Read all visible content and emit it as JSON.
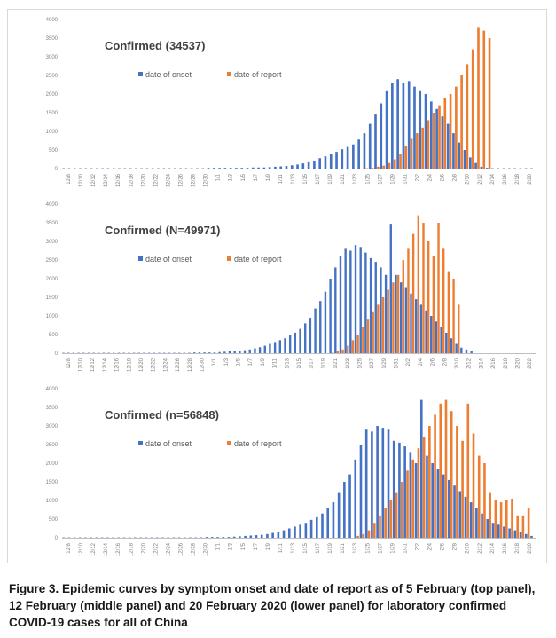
{
  "colors": {
    "onset": "#4472C4",
    "report": "#ED7D31",
    "axis": "#bfbfbf",
    "tick_text": "#7f7f7f"
  },
  "legend": {
    "onset_label": "date of onset",
    "report_label": "date of report"
  },
  "caption": {
    "label": "Figure 3.",
    "text": "Epidemic curves by symptom onset and date of report as of 5 February (top panel), 12 February (middle panel) and 20 February 2020 (lower panel) for laboratory confirmed COVID-19 cases for all of China"
  },
  "chart_data": [
    {
      "type": "bar",
      "title": "Confirmed (34537)",
      "ylim": [
        0,
        4000
      ],
      "yticks": [
        "0",
        "500",
        "1000",
        "1500",
        "2000",
        "2500",
        "3000",
        "3500",
        "4000"
      ],
      "x_tick_labels": [
        "12/8",
        "12/10",
        "12/12",
        "12/14",
        "12/16",
        "12/18",
        "12/20",
        "12/22",
        "12/24",
        "12/26",
        "12/28",
        "12/30",
        "1/1",
        "1/3",
        "1/5",
        "1/7",
        "1/9",
        "1/11",
        "1/13",
        "1/15",
        "1/17",
        "1/19",
        "1/21",
        "1/23",
        "1/25",
        "1/27",
        "1/29",
        "1/31",
        "2/2",
        "2/4",
        "2/6",
        "2/8",
        "2/10",
        "2/12",
        "2/14",
        "2/16",
        "2/18",
        "2/20"
      ],
      "series": [
        {
          "name": "date of onset",
          "values": [
            10,
            10,
            10,
            10,
            10,
            10,
            10,
            10,
            10,
            10,
            10,
            10,
            10,
            10,
            10,
            10,
            10,
            10,
            10,
            10,
            10,
            10,
            10,
            10,
            10,
            10,
            20,
            20,
            20,
            20,
            20,
            20,
            20,
            20,
            30,
            30,
            30,
            40,
            50,
            60,
            70,
            90,
            110,
            140,
            170,
            210,
            280,
            330,
            400,
            450,
            520,
            580,
            650,
            780,
            950,
            1200,
            1450,
            1750,
            2100,
            2300,
            2400,
            2300,
            2350,
            2200,
            2100,
            2000,
            1800,
            1600,
            1400,
            1200,
            950,
            700,
            500,
            300,
            150,
            50,
            20,
            10,
            10,
            10,
            10,
            10,
            10,
            10,
            10
          ]
        },
        {
          "name": "date of report",
          "values": [
            0,
            0,
            0,
            0,
            0,
            0,
            0,
            0,
            0,
            0,
            0,
            0,
            0,
            0,
            0,
            0,
            0,
            0,
            0,
            0,
            0,
            0,
            0,
            0,
            0,
            0,
            0,
            0,
            0,
            0,
            0,
            0,
            0,
            0,
            0,
            0,
            0,
            0,
            0,
            0,
            0,
            0,
            0,
            0,
            0,
            0,
            0,
            0,
            0,
            0,
            0,
            0,
            0,
            0,
            10,
            20,
            50,
            80,
            150,
            250,
            400,
            600,
            800,
            950,
            1100,
            1300,
            1500,
            1700,
            1900,
            2000,
            2200,
            2500,
            2800,
            3200,
            3800,
            3700,
            3500,
            0,
            0,
            0,
            0,
            0,
            0,
            0,
            0
          ]
        }
      ]
    },
    {
      "type": "bar",
      "title": "Confirmed (N=49971)",
      "ylim": [
        0,
        4000
      ],
      "yticks": [
        "0",
        "500",
        "1000",
        "1500",
        "2000",
        "2500",
        "3000",
        "3500",
        "4000"
      ],
      "x_tick_labels": [
        "12/8",
        "12/10",
        "12/12",
        "12/14",
        "12/16",
        "12/18",
        "12/20",
        "12/22",
        "12/24",
        "12/26",
        "12/28",
        "12/30",
        "1/1",
        "1/3",
        "1/5",
        "1/7",
        "1/9",
        "1/11",
        "1/13",
        "1/15",
        "1/17",
        "1/19",
        "1/21",
        "1/23",
        "1/25",
        "1/27",
        "1/29",
        "1/31",
        "2/2",
        "2/4",
        "2/6",
        "2/8",
        "2/10",
        "2/12",
        "2/14",
        "2/16",
        "2/18",
        "2/20",
        "2/22"
      ],
      "series": [
        {
          "name": "date of onset",
          "values": [
            10,
            10,
            10,
            10,
            10,
            10,
            10,
            10,
            10,
            10,
            10,
            10,
            10,
            10,
            10,
            10,
            10,
            10,
            10,
            10,
            10,
            10,
            10,
            10,
            10,
            10,
            20,
            20,
            20,
            20,
            20,
            30,
            40,
            50,
            60,
            70,
            80,
            100,
            130,
            160,
            200,
            250,
            300,
            350,
            400,
            480,
            550,
            650,
            800,
            950,
            1200,
            1400,
            1650,
            2000,
            2300,
            2600,
            2800,
            2750,
            2900,
            2850,
            2700,
            2550,
            2450,
            2300,
            2100,
            3450,
            2100,
            1900,
            1750,
            1600,
            1450,
            1300,
            1150,
            1000,
            850,
            700,
            550,
            400,
            250,
            150,
            100,
            50,
            0,
            0,
            0,
            0,
            0,
            0,
            0,
            0,
            0,
            0,
            0,
            0
          ]
        },
        {
          "name": "date of report",
          "values": [
            0,
            0,
            0,
            0,
            0,
            0,
            0,
            0,
            0,
            0,
            0,
            0,
            0,
            0,
            0,
            0,
            0,
            0,
            0,
            0,
            0,
            0,
            0,
            0,
            0,
            0,
            0,
            0,
            0,
            0,
            0,
            0,
            0,
            0,
            0,
            0,
            0,
            0,
            0,
            0,
            0,
            0,
            0,
            0,
            0,
            0,
            0,
            0,
            0,
            0,
            0,
            0,
            0,
            10,
            50,
            100,
            200,
            350,
            500,
            700,
            900,
            1100,
            1300,
            1500,
            1700,
            1900,
            2100,
            2500,
            2800,
            3200,
            3700,
            3500,
            3000,
            2600,
            3500,
            2800,
            2200,
            2000,
            1300,
            0,
            0,
            0,
            0,
            0,
            0,
            0,
            0,
            0,
            0,
            0,
            0,
            0,
            0,
            0
          ]
        }
      ]
    },
    {
      "type": "bar",
      "title": "Confirmed (n=56848)",
      "ylim": [
        0,
        4000
      ],
      "yticks": [
        "0",
        "500",
        "1000",
        "1500",
        "2000",
        "2500",
        "3000",
        "3500",
        "4000"
      ],
      "x_tick_labels": [
        "12/8",
        "12/10",
        "12/12",
        "12/14",
        "12/16",
        "12/18",
        "12/20",
        "12/22",
        "12/24",
        "12/26",
        "12/28",
        "12/30",
        "1/1",
        "1/3",
        "1/5",
        "1/7",
        "1/9",
        "1/11",
        "1/13",
        "1/15",
        "1/17",
        "1/19",
        "1/21",
        "1/23",
        "1/25",
        "1/27",
        "1/29",
        "1/31",
        "2/2",
        "2/4",
        "2/6",
        "2/8",
        "2/10",
        "2/12",
        "2/14",
        "2/16",
        "2/18",
        "2/20"
      ],
      "series": [
        {
          "name": "date of onset",
          "values": [
            10,
            10,
            10,
            10,
            10,
            10,
            10,
            10,
            10,
            10,
            10,
            10,
            10,
            10,
            10,
            10,
            10,
            10,
            10,
            10,
            10,
            10,
            10,
            10,
            10,
            10,
            20,
            20,
            20,
            20,
            20,
            30,
            40,
            50,
            60,
            70,
            80,
            100,
            130,
            160,
            200,
            250,
            300,
            350,
            400,
            480,
            550,
            650,
            800,
            950,
            1200,
            1500,
            1700,
            2100,
            2500,
            2900,
            2850,
            3000,
            2950,
            2900,
            2600,
            2550,
            2450,
            2300,
            2000,
            3700,
            2200,
            2000,
            1850,
            1700,
            1550,
            1400,
            1250,
            1100,
            950,
            800,
            650,
            500,
            400,
            350,
            300,
            250,
            200,
            150,
            100,
            50
          ]
        },
        {
          "name": "date of report",
          "values": [
            0,
            0,
            0,
            0,
            0,
            0,
            0,
            0,
            0,
            0,
            0,
            0,
            0,
            0,
            0,
            0,
            0,
            0,
            0,
            0,
            0,
            0,
            0,
            0,
            0,
            0,
            0,
            0,
            0,
            0,
            0,
            0,
            0,
            0,
            0,
            0,
            0,
            0,
            0,
            0,
            0,
            0,
            0,
            0,
            0,
            0,
            0,
            0,
            0,
            0,
            0,
            0,
            0,
            50,
            100,
            200,
            400,
            600,
            800,
            1000,
            1200,
            1500,
            1800,
            2100,
            2400,
            2700,
            3000,
            3300,
            3600,
            3700,
            3400,
            3000,
            2600,
            3600,
            2800,
            2200,
            2000,
            1200,
            1000,
            950,
            1000,
            1050,
            600,
            600,
            800
          ]
        }
      ]
    }
  ]
}
